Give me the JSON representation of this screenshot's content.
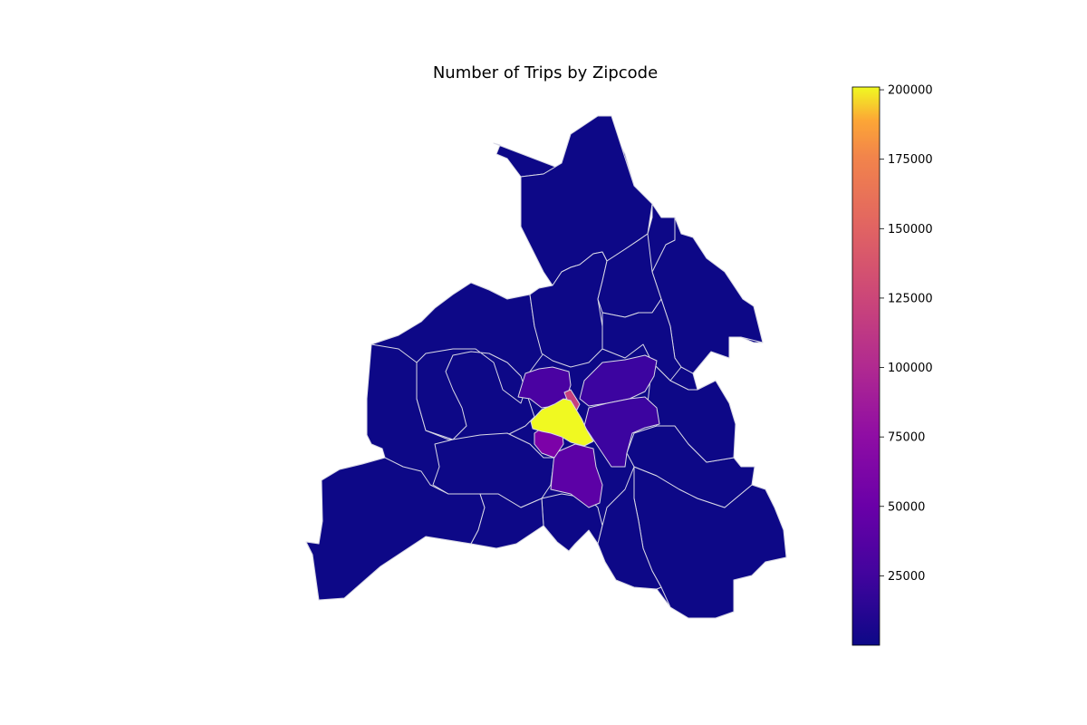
{
  "chart_data": {
    "type": "choropleth",
    "title": "Number of Trips by Zipcode",
    "colormap": "plasma",
    "colorbar": {
      "min": 0,
      "max": 201000,
      "ticks": [
        25000,
        50000,
        75000,
        100000,
        125000,
        150000,
        175000,
        200000
      ],
      "tick_labels": [
        "25000",
        "50000",
        "75000",
        "100000",
        "125000",
        "150000",
        "175000",
        "200000"
      ],
      "placement": "right"
    },
    "region_border_color": "#d9d9e6"
  }
}
